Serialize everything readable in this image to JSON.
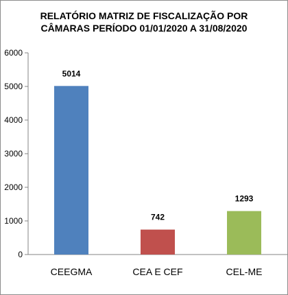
{
  "chart_data": {
    "type": "bar",
    "title_line1": "RELATÓRIO MATRIZ DE FISCALIZAÇÃO POR",
    "title_line2": "CÂMARAS PERÍODO 01/01/2020  A 31/08/2020",
    "xlabel": "",
    "ylabel": "",
    "categories": [
      "CEEGMA",
      "CEA E CEF",
      "CEL-ME"
    ],
    "values": [
      5014,
      742,
      1293
    ],
    "data_labels": [
      "5014",
      "742",
      "1293"
    ],
    "colors": [
      "#4F81BD",
      "#C0504D",
      "#9BBB59"
    ],
    "ylim": [
      0,
      6000
    ],
    "yticks": [
      0,
      1000,
      2000,
      3000,
      4000,
      5000,
      6000
    ],
    "grid": false,
    "legend": "none"
  }
}
